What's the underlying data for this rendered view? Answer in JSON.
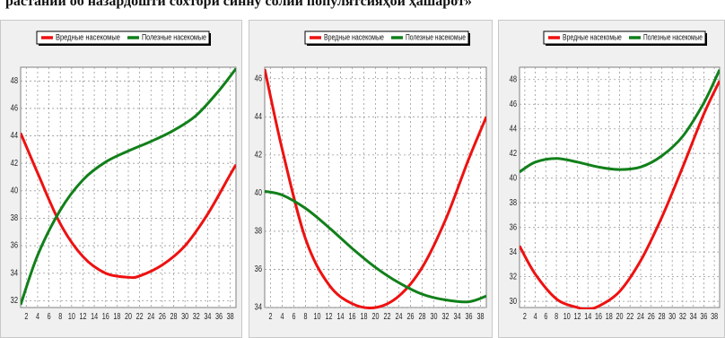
{
  "page": {
    "title": "растаний об назардошти сохтори синну солии популятсияҳои ҳашарот»"
  },
  "colors": {
    "harmful": "#ee1111",
    "beneficial": "#11801a",
    "grid": "#9a9a9a",
    "plot_bg": "#ffffff",
    "panel_bg": "#f0f0f0"
  },
  "chart_data": [
    {
      "type": "line",
      "legend_placement": "top",
      "grid": true,
      "x_ticks": [
        2,
        4,
        6,
        8,
        10,
        12,
        14,
        16,
        18,
        20,
        22,
        24,
        26,
        28,
        30,
        32,
        34,
        36,
        38
      ],
      "xlim": [
        1,
        39
      ],
      "y_ticks": [
        32,
        34,
        36,
        38,
        40,
        42,
        44,
        46,
        48
      ],
      "ylim": [
        31.5,
        49
      ],
      "series": [
        {
          "name": "Вредные насекомые",
          "color": "harmful",
          "x": [
            1,
            4,
            8,
            12,
            16,
            20,
            22,
            26,
            30,
            34,
            38,
            39
          ],
          "y": [
            44.2,
            41.3,
            37.6,
            35.2,
            34.0,
            33.7,
            33.8,
            34.6,
            36.0,
            38.3,
            41.2,
            41.9
          ]
        },
        {
          "name": "Полезные насекомые",
          "color": "beneficial",
          "x": [
            1,
            4,
            8,
            12,
            16,
            20,
            24,
            28,
            32,
            36,
            39
          ],
          "y": [
            31.7,
            35.3,
            38.6,
            40.8,
            42.1,
            42.9,
            43.6,
            44.4,
            45.5,
            47.3,
            48.9
          ]
        }
      ]
    },
    {
      "type": "line",
      "legend_placement": "top",
      "grid": true,
      "x_ticks": [
        2,
        4,
        6,
        8,
        10,
        12,
        14,
        16,
        18,
        20,
        22,
        24,
        26,
        28,
        30,
        32,
        34,
        36,
        38
      ],
      "xlim": [
        1,
        39
      ],
      "y_ticks": [
        34,
        36,
        38,
        40,
        42,
        44,
        46
      ],
      "ylim": [
        34,
        46.6
      ],
      "series": [
        {
          "name": "Вредные насекомые",
          "color": "harmful",
          "x": [
            1,
            4,
            8,
            12,
            16,
            20,
            24,
            28,
            32,
            36,
            39
          ],
          "y": [
            46.5,
            42.3,
            37.6,
            35.2,
            34.2,
            34.0,
            34.6,
            36.1,
            38.6,
            41.8,
            44.0
          ]
        },
        {
          "name": "Полезные насекомые",
          "color": "beneficial",
          "x": [
            1,
            4,
            8,
            12,
            16,
            20,
            24,
            28,
            32,
            36,
            39
          ],
          "y": [
            40.1,
            39.9,
            39.2,
            38.2,
            37.1,
            36.1,
            35.3,
            34.7,
            34.4,
            34.3,
            34.6
          ]
        }
      ]
    },
    {
      "type": "line",
      "legend_placement": "top",
      "grid": true,
      "x_ticks": [
        2,
        4,
        6,
        8,
        10,
        12,
        14,
        16,
        18,
        20,
        22,
        24,
        26,
        28,
        30,
        32,
        34,
        36,
        38
      ],
      "xlim": [
        1,
        39
      ],
      "y_ticks": [
        30,
        32,
        34,
        36,
        38,
        40,
        42,
        44,
        46,
        48
      ],
      "ylim": [
        29.5,
        49
      ],
      "series": [
        {
          "name": "Вредные насекомые",
          "color": "harmful",
          "x": [
            1,
            4,
            8,
            12,
            14,
            16,
            20,
            24,
            28,
            32,
            36,
            39
          ],
          "y": [
            34.5,
            32.2,
            30.2,
            29.5,
            29.4,
            29.6,
            30.8,
            33.3,
            36.8,
            40.9,
            45.2,
            47.9
          ]
        },
        {
          "name": "Полезные насекомые",
          "color": "beneficial",
          "x": [
            1,
            4,
            8,
            12,
            16,
            20,
            24,
            28,
            32,
            36,
            39
          ],
          "y": [
            40.5,
            41.3,
            41.6,
            41.3,
            40.9,
            40.7,
            40.9,
            41.8,
            43.4,
            46.1,
            48.8
          ]
        }
      ]
    }
  ]
}
